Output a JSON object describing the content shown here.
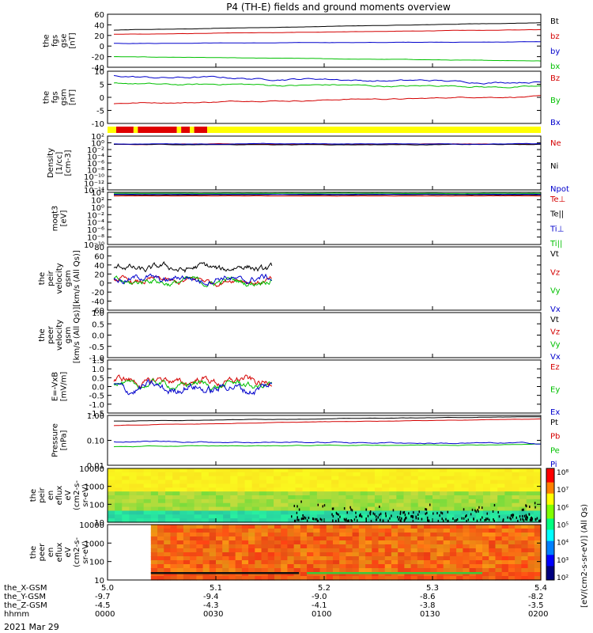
{
  "chart_data": {
    "type": "line",
    "title": "P4 (TH-E) fields and ground moments overview",
    "date_label": "2021 Mar 29",
    "x_tick_rows": [
      {
        "label": "the_X-GSM",
        "values": [
          "5.0",
          "5.1",
          "5.2",
          "5.3",
          "5.4"
        ]
      },
      {
        "label": "the_Y-GSM",
        "values": [
          "-9.7",
          "-9.4",
          "-9.0",
          "-8.6",
          "-8.2"
        ]
      },
      {
        "label": "the_Z-GSM",
        "values": [
          "-4.5",
          "-4.3",
          "-4.1",
          "-3.8",
          "-3.5"
        ]
      },
      {
        "label": "hhmm",
        "values": [
          "0000",
          "0030",
          "0100",
          "0130",
          "0200"
        ]
      }
    ],
    "time_range_hours": [
      0,
      2
    ],
    "panels": [
      {
        "id": "fgs-gse",
        "ylabel": [
          "the",
          "fgs",
          "gse",
          "[nT]"
        ],
        "ylim": [
          -40,
          60
        ],
        "yscale": "linear",
        "ticks": [
          "60",
          "40",
          "20",
          "0",
          "-20",
          "-40"
        ],
        "series": [
          {
            "name": "Bt",
            "color": "#000000",
            "start": 30,
            "end": 44,
            "noise": 0.4
          },
          {
            "name": "bz",
            "color": "#d40000",
            "start": 22,
            "end": 31,
            "noise": 0.4
          },
          {
            "name": "by",
            "color": "#0000cc",
            "start": 5,
            "end": 8,
            "noise": 0.5
          },
          {
            "name": "bx",
            "color": "#00c000",
            "start": -20,
            "end": -28,
            "noise": 0.5
          }
        ]
      },
      {
        "id": "fgs-gsm",
        "ylabel": [
          "the",
          "fgs",
          "gsm",
          "[nT]"
        ],
        "ylim": [
          -15,
          10
        ],
        "yscale": "linear",
        "ticks": [
          "10",
          "5",
          "0",
          "-5",
          "-10"
        ],
        "series": [
          {
            "name": "Bz",
            "color": "#d40000",
            "start": -5.5,
            "end": -2,
            "noise": 0.4
          },
          {
            "name": "By",
            "color": "#00c000",
            "start": 4,
            "end": 2.5,
            "noise": 0.6
          },
          {
            "name": "Bx",
            "color": "#0000cc",
            "start": 7.5,
            "end": 4.5,
            "noise": 0.7
          }
        ]
      },
      {
        "id": "density",
        "ylabel": [
          "Density",
          "[1/cc]",
          "[cm-3]"
        ],
        "ylim": [
          1e-14,
          100.0
        ],
        "yscale": "log",
        "ticks": [
          "10²",
          "10⁰",
          "10⁻²",
          "10⁻⁴",
          "10⁻⁶",
          "10⁻⁸",
          "10⁻¹⁰",
          "10⁻¹²",
          "10⁻¹⁴"
        ],
        "series": [
          {
            "name": "Ne",
            "color": "#d40000",
            "start": 0.4,
            "end": 0.4,
            "noise": 0.1
          },
          {
            "name": "Ni",
            "color": "#000000",
            "start": 0.3,
            "end": 0.3,
            "noise": 0.1
          },
          {
            "name": "Npot",
            "color": "#0000cc",
            "start": 0.5,
            "end": 0.5,
            "noise": 0.1
          }
        ]
      },
      {
        "id": "temperature",
        "ylabel": [
          "moqt3",
          "[eV]"
        ],
        "ylim": [
          1e-10,
          10000.0
        ],
        "yscale": "log",
        "ticks": [
          "10⁴",
          "10²",
          "10⁰",
          "10⁻²",
          "10⁻⁴",
          "10⁻⁶",
          "10⁻⁸",
          "10⁻¹⁰"
        ],
        "series": [
          {
            "name": "Te⊥",
            "color": "#d40000",
            "start": 1000,
            "end": 1000,
            "noise": 0.05
          },
          {
            "name": "Te||",
            "color": "#000000",
            "start": 2000,
            "end": 2000,
            "noise": 0.05
          },
          {
            "name": "Ti⊥",
            "color": "#0000cc",
            "start": 3000,
            "end": 3000,
            "noise": 0.05
          },
          {
            "name": "Ti||",
            "color": "#00c000",
            "start": 5000,
            "end": 5000,
            "noise": 0.05
          }
        ]
      },
      {
        "id": "peir-velocity",
        "ylabel": [
          "the",
          "peir",
          "velocity",
          "gsm",
          "[km/s (All Qs)]"
        ],
        "ylim": [
          -60,
          80
        ],
        "yscale": "linear",
        "ticks": [
          "80",
          "60",
          "40",
          "20",
          "0",
          "-20",
          "-40",
          "-60"
        ],
        "data_end_fraction": 0.37,
        "series": [
          {
            "name": "Vt",
            "color": "#000000",
            "start": 32,
            "end": 34,
            "noise": 12
          },
          {
            "name": "Vz",
            "color": "#d40000",
            "start": 5,
            "end": 5,
            "noise": 10
          },
          {
            "name": "Vy",
            "color": "#00c000",
            "start": 3,
            "end": 3,
            "noise": 11
          },
          {
            "name": "Vx",
            "color": "#0000cc",
            "start": 10,
            "end": 8,
            "noise": 12
          }
        ]
      },
      {
        "id": "peer-velocity",
        "ylabel": [
          "the",
          "peer",
          "velocity",
          "gsm",
          "[km/s (All Qs)]"
        ],
        "ylim": [
          -1,
          1
        ],
        "yscale": "linear",
        "ticks": [
          "1.0",
          "0.5",
          "0.0",
          "-0.5",
          "-1.0"
        ],
        "data_end_fraction": 0,
        "series": [
          {
            "name": "Vt",
            "color": "#000000"
          },
          {
            "name": "Vz",
            "color": "#d40000"
          },
          {
            "name": "Vy",
            "color": "#00c000"
          },
          {
            "name": "Vx",
            "color": "#0000cc"
          }
        ]
      },
      {
        "id": "efield",
        "ylabel": [
          "E=-VxB",
          "[mV/m]"
        ],
        "ylim": [
          -1.5,
          1.5
        ],
        "yscale": "linear",
        "ticks": [
          "1.5",
          "1.0",
          "0.5",
          "0.0",
          "-0.5",
          "-1.0",
          "-1.5"
        ],
        "data_end_fraction": 0.37,
        "series": [
          {
            "name": "Ez",
            "color": "#d40000",
            "start": 0.3,
            "end": 0.3,
            "noise": 0.35
          },
          {
            "name": "Ey",
            "color": "#00c000",
            "start": 0.1,
            "end": 0.1,
            "noise": 0.3
          },
          {
            "name": "Ex",
            "color": "#0000cc",
            "start": -0.1,
            "end": -0.1,
            "noise": 0.4
          }
        ]
      },
      {
        "id": "pressure",
        "ylabel": [
          "Pressure",
          "[nPa]"
        ],
        "ylim": [
          0.01,
          1.2
        ],
        "yscale": "log",
        "ticks": [
          "1.00",
          "0.10",
          "0.01"
        ],
        "series": [
          {
            "name": "Pt",
            "color": "#000000",
            "start": 0.7,
            "end": 1.05,
            "noise": 0.01
          },
          {
            "name": "Pb",
            "color": "#d40000",
            "start": 0.45,
            "end": 0.85,
            "noise": 0.01
          },
          {
            "name": "Pe",
            "color": "#00c000",
            "start": 0.06,
            "end": 0.075,
            "noise": 0.02
          },
          {
            "name": "Pi",
            "color": "#0000cc",
            "start": 0.1,
            "end": 0.08,
            "noise": 0.04
          }
        ]
      },
      {
        "id": "peir-eflux",
        "type": "heatmap",
        "ylabel": [
          "the",
          "peir",
          "en",
          "eflux",
          "eV",
          "(cm2-s-",
          "sr-eV)"
        ],
        "ylim": [
          5,
          20000
        ],
        "yscale": "log",
        "ticks": [
          "10000",
          "1000",
          "100",
          "10"
        ]
      },
      {
        "id": "peer-eflux",
        "type": "heatmap",
        "ylabel": [
          "the",
          "peer",
          "en",
          "eflux",
          "eV",
          "(cm2-s-",
          "sr-eV)"
        ],
        "ylim": [
          5,
          20000
        ],
        "yscale": "log",
        "ticks": [
          "10000",
          "1000",
          "100",
          "10"
        ],
        "data_start_fraction": 0.1
      }
    ],
    "colorbar": {
      "label": "[eV/(cm2-s-sr-eV)] (All Qs)",
      "ticks": [
        "10⁸",
        "10⁷",
        "10⁶",
        "10⁵",
        "10⁴",
        "10³",
        "10²"
      ],
      "range": [
        100,
        100000000
      ]
    },
    "mode_bar": {
      "colors": [
        "#ffff00",
        "#e00000"
      ],
      "segments": [
        [
          0,
          0.02,
          0
        ],
        [
          0.02,
          0.06,
          1
        ],
        [
          0.06,
          0.07,
          0
        ],
        [
          0.07,
          0.16,
          1
        ],
        [
          0.16,
          0.17,
          0
        ],
        [
          0.17,
          0.19,
          1
        ],
        [
          0.19,
          0.2,
          0
        ],
        [
          0.2,
          0.23,
          1
        ],
        [
          0.23,
          1,
          0
        ]
      ]
    }
  }
}
